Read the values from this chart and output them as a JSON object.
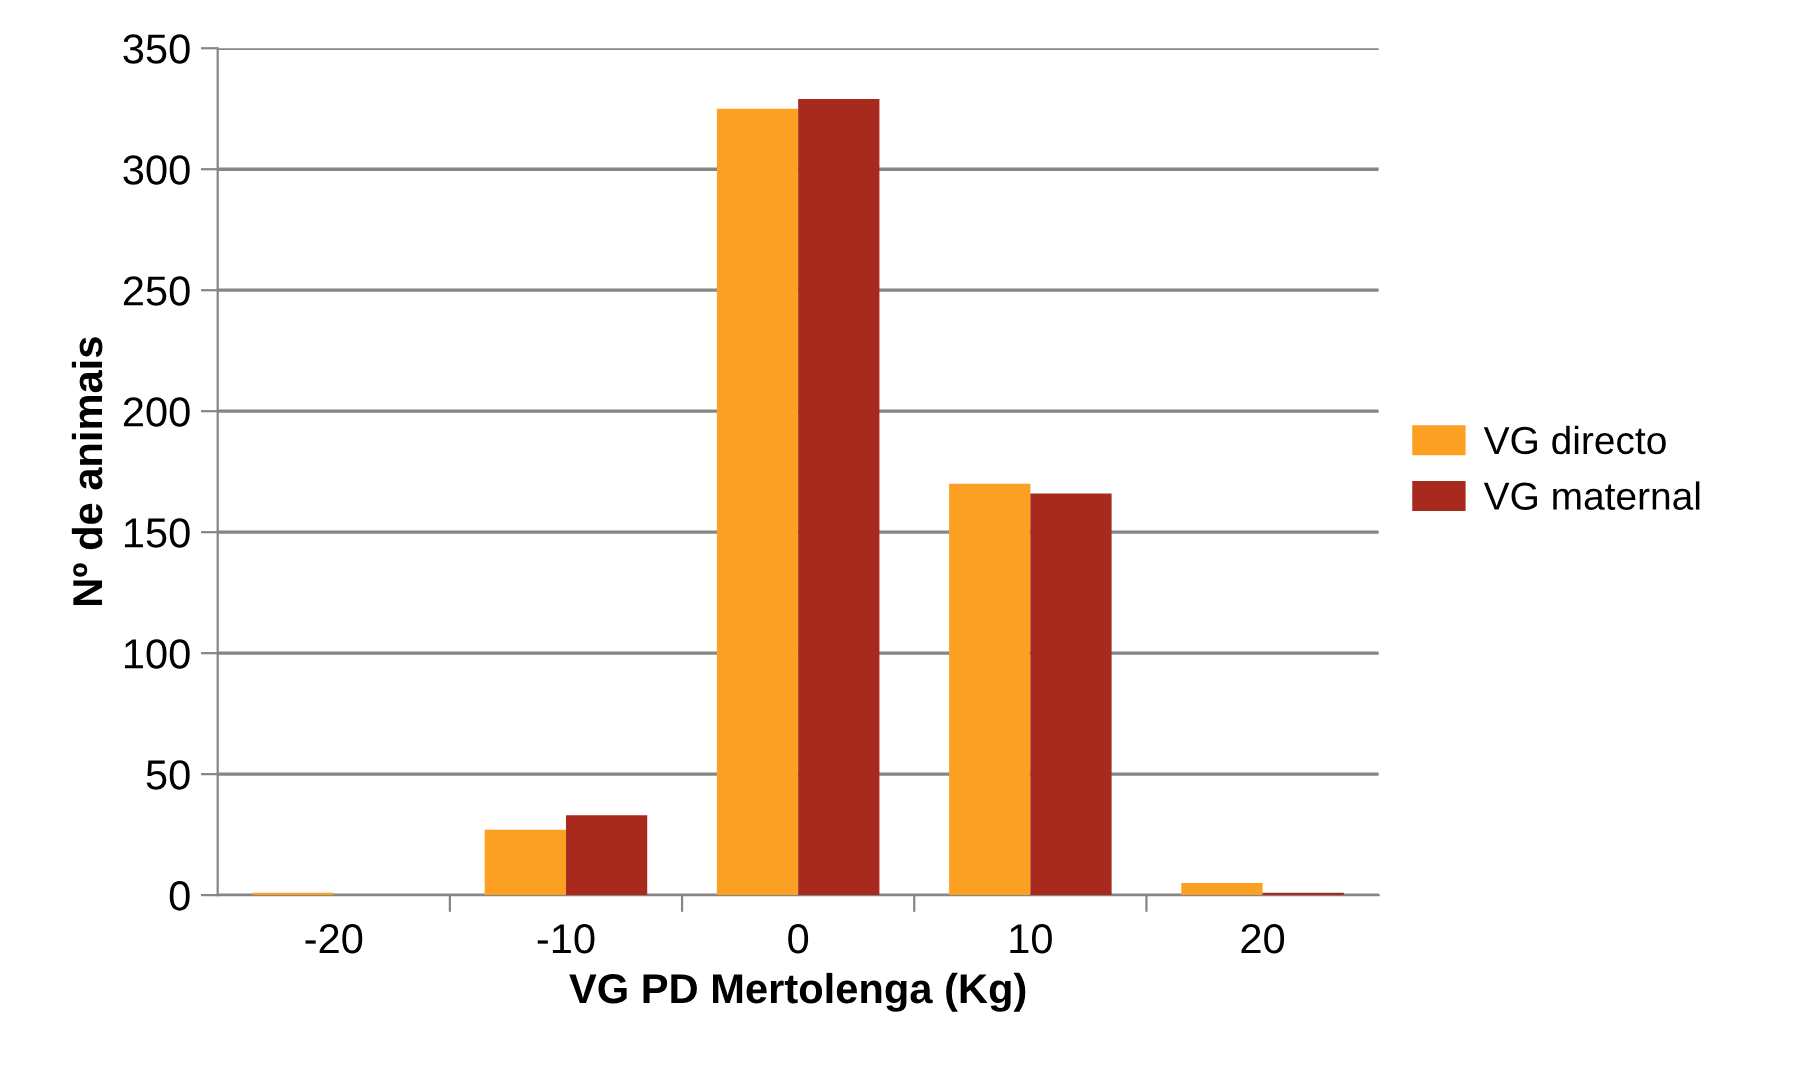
{
  "chart_data": {
    "type": "bar",
    "xlabel": "VG PD Mertolenga (Kg)",
    "ylabel": "Nº de animais",
    "categories": [
      "-20",
      "-10",
      "0",
      "10",
      "20"
    ],
    "series": [
      {
        "name": "VG directo",
        "color": "#fca024",
        "values": [
          1,
          27,
          325,
          170,
          5
        ]
      },
      {
        "name": "VG maternal",
        "color": "#a82a1f",
        "values": [
          0,
          33,
          329,
          166,
          1
        ]
      }
    ],
    "ylim": [
      0,
      350
    ],
    "yticks": [
      0,
      50,
      100,
      150,
      200,
      250,
      300,
      350
    ],
    "grid": "y",
    "legend": "right"
  }
}
